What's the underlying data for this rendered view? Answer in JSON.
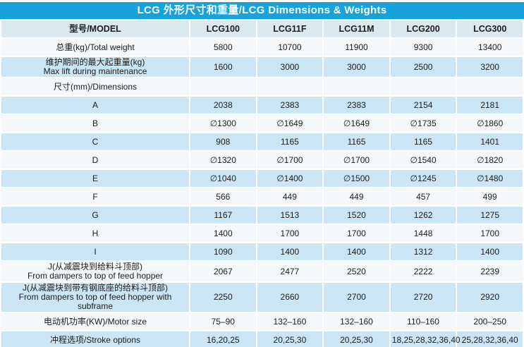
{
  "title": "LCG 外形尺寸和重量/LCG Dimensions & Weights",
  "colors": {
    "accent_cyan": "#18A2DB",
    "row_light": "#F4F8FA",
    "row_blue": "#CBE5F4",
    "header_row": "#DAE8F0",
    "text": "#1C1C1C",
    "title_text": "#FFFFFF"
  },
  "table": {
    "header": [
      "型号/MODEL",
      "LCG100",
      "LCG11F",
      "LCG11M",
      "LCG200",
      "LCG300"
    ],
    "rows": [
      {
        "label": "总重(kg)/Total weight",
        "label2": "",
        "values": [
          "5800",
          "10700",
          "11900",
          "9300",
          "13400"
        ]
      },
      {
        "label": "维护期间的最大起重量(kg)",
        "label2": "Max lift during maintenance",
        "values": [
          "1600",
          "3000",
          "3000",
          "2500",
          "3200"
        ]
      },
      {
        "label": "尺寸(mm)/Dimensions",
        "label2": "",
        "values": [
          "",
          "",
          "",
          "",
          ""
        ]
      },
      {
        "label": "A",
        "label2": "",
        "values": [
          "2038",
          "2383",
          "2383",
          "2154",
          "2181"
        ]
      },
      {
        "label": "B",
        "label2": "",
        "values": [
          "∅1300",
          "∅1649",
          "∅1649",
          "∅1735",
          "∅1860"
        ]
      },
      {
        "label": "C",
        "label2": "",
        "values": [
          "908",
          "1165",
          "1165",
          "1165",
          "1401"
        ]
      },
      {
        "label": "D",
        "label2": "",
        "values": [
          "∅1320",
          "∅1700",
          "∅1700",
          "∅1540",
          "∅1820"
        ]
      },
      {
        "label": "E",
        "label2": "",
        "values": [
          "∅1040",
          "∅1400",
          "∅1500",
          "∅1245",
          "∅1480"
        ]
      },
      {
        "label": "F",
        "label2": "",
        "values": [
          "566",
          "449",
          "449",
          "457",
          "499"
        ]
      },
      {
        "label": "G",
        "label2": "",
        "values": [
          "1167",
          "1513",
          "1520",
          "1262",
          "1275"
        ]
      },
      {
        "label": "H",
        "label2": "",
        "values": [
          "1400",
          "1700",
          "1700",
          "1448",
          "1700"
        ]
      },
      {
        "label": "I",
        "label2": "",
        "values": [
          "1090",
          "1400",
          "1400",
          "1312",
          "1400"
        ]
      },
      {
        "label": "J(从减震块到给料斗顶部)",
        "label2": "From dampers to top of feed hopper",
        "values": [
          "2067",
          "2477",
          "2520",
          "2222",
          "2239"
        ]
      },
      {
        "label": "J(从减震块到带有钢底座的给料斗顶部)",
        "label2": "From dampers to top of feed hopper with subframe",
        "values": [
          "2250",
          "2660",
          "2700",
          "2720",
          "2920"
        ]
      },
      {
        "label": "电动机功率(KW)/Motor size",
        "label2": "",
        "values": [
          "75–90",
          "132–160",
          "132–160",
          "110–160",
          "200–250"
        ]
      },
      {
        "label": "冲程选项/Stroke options",
        "label2": "",
        "values": [
          "16,20,25",
          "20,25,30",
          "20,25,30",
          "18,25,28,32,36,40",
          "25,28,32,36,40"
        ]
      }
    ]
  }
}
